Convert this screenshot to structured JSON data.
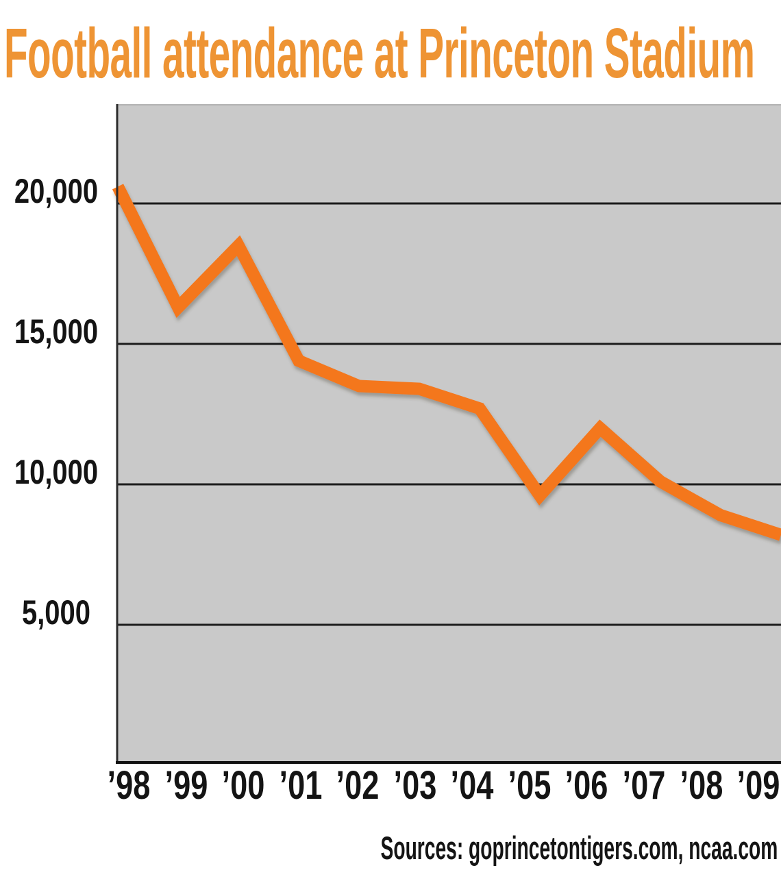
{
  "title": {
    "text": "Football attendance at Princeton Stadium",
    "color": "#ee9434"
  },
  "source_note": {
    "text": "Sources: goprincetontigers.com, ncaa.com"
  },
  "colors": {
    "title_orange": "#ee9434",
    "line_orange": "#f4771c",
    "plot_background": "#c9c9c9",
    "gridline": "#1c1c1c",
    "axis": "#2b2b2b",
    "label_text": "#141414",
    "page_background": "#ffffff"
  },
  "chart_data": {
    "type": "line",
    "title": "Football attendance at Princeton Stadium",
    "xlabel": "",
    "ylabel": "",
    "categories": [
      "’98",
      "’99",
      "’00",
      "’01",
      "’02",
      "’03",
      "’04",
      "’05",
      "’06",
      "’07",
      "’08",
      "’09"
    ],
    "series": [
      {
        "name": "Attendance",
        "values": [
          20600,
          16300,
          18500,
          14400,
          13500,
          13400,
          12700,
          9600,
          12000,
          10100,
          8900,
          8200
        ]
      }
    ],
    "y_ticks": {
      "labels": [
        "20,000",
        "15,000",
        "10,000",
        "5,000"
      ],
      "values": [
        20000,
        15000,
        10000,
        5000
      ]
    },
    "ylim": [
      0,
      23500
    ],
    "grid": true,
    "legend_position": "none",
    "source": "Sources: goprincetontigers.com, ncaa.com"
  }
}
